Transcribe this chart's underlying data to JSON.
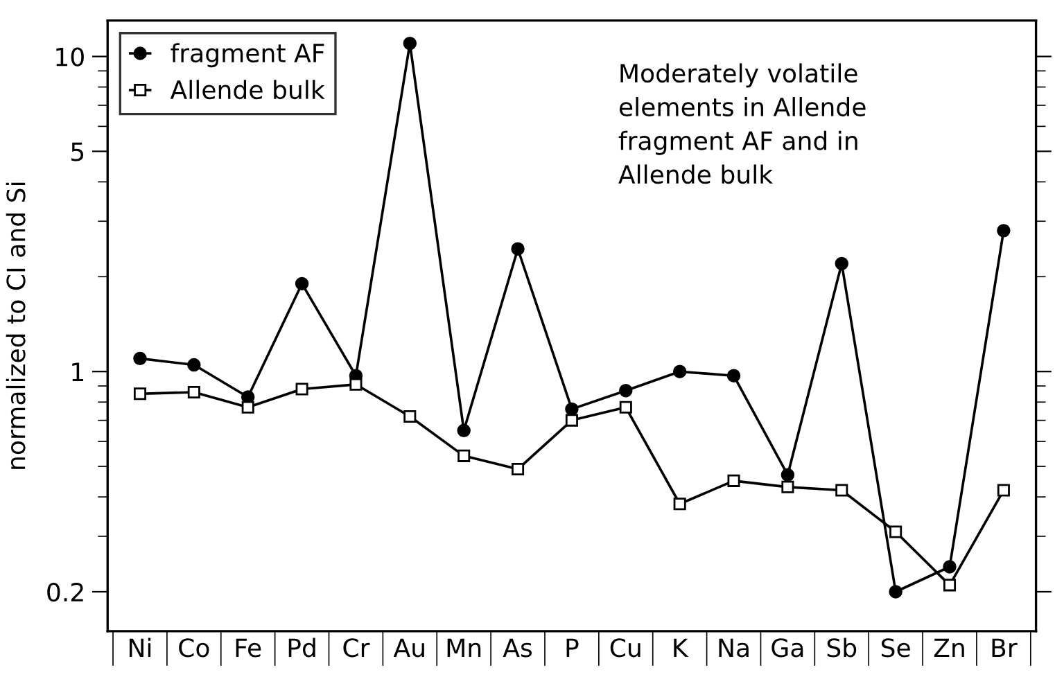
{
  "chart_data": {
    "type": "line",
    "ylabel": "normalized to CI and Si",
    "categories": [
      "Ni",
      "Co",
      "Fe",
      "Pd",
      "Cr",
      "Au",
      "Mn",
      "As",
      "P",
      "Cu",
      "K",
      "Na",
      "Ga",
      "Sb",
      "Se",
      "Zn",
      "Br"
    ],
    "series": [
      {
        "name": "fragment AF",
        "color": "#000000",
        "marker": "circle",
        "values": [
          1.1,
          1.05,
          0.83,
          1.9,
          0.97,
          11.0,
          0.65,
          2.45,
          0.76,
          0.87,
          1.0,
          0.97,
          0.47,
          2.2,
          0.2,
          0.24,
          2.8
        ]
      },
      {
        "name": "Allende bulk",
        "color": "#000000",
        "marker": "square",
        "values": [
          0.85,
          0.86,
          0.77,
          0.88,
          0.91,
          0.72,
          0.54,
          0.49,
          0.7,
          0.77,
          0.38,
          0.45,
          0.43,
          0.42,
          0.31,
          0.21,
          0.42
        ]
      }
    ],
    "log": "y",
    "ylim": [
      0.15,
      13
    ],
    "yticks": [
      0.2,
      1,
      5,
      10
    ],
    "grid": false,
    "legend": "top left",
    "annotations": [
      {
        "text": "Moderately volatile\nelements in Allende\nfragment AF and in\nAllende bulk"
      }
    ]
  }
}
